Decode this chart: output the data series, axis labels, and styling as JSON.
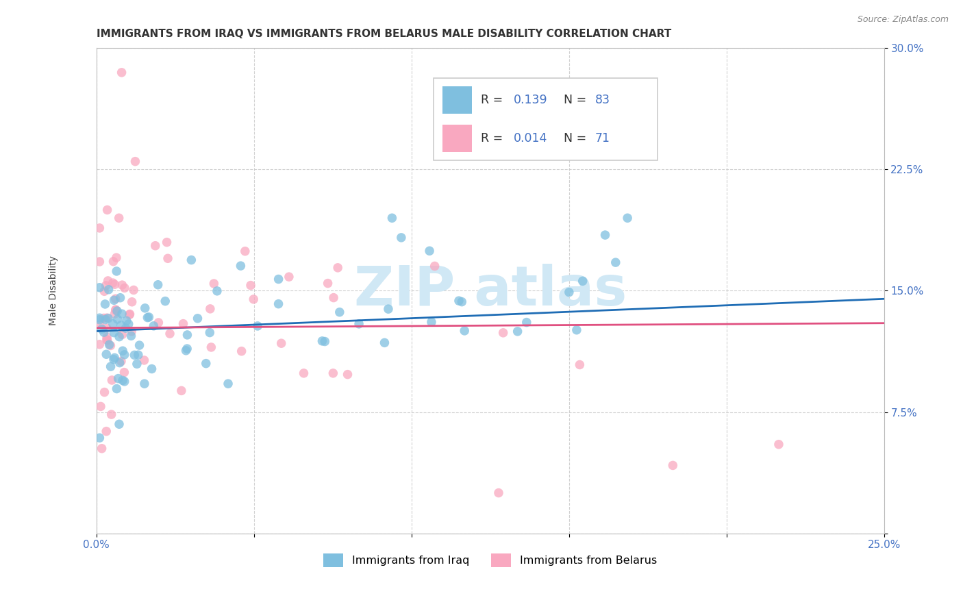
{
  "title": "IMMIGRANTS FROM IRAQ VS IMMIGRANTS FROM BELARUS MALE DISABILITY CORRELATION CHART",
  "source": "Source: ZipAtlas.com",
  "ylabel": "Male Disability",
  "xlim": [
    0.0,
    0.25
  ],
  "ylim": [
    0.0,
    0.3
  ],
  "xtick_positions": [
    0.0,
    0.05,
    0.1,
    0.15,
    0.2,
    0.25
  ],
  "xtick_labels": [
    "0.0%",
    "",
    "",
    "",
    "",
    "25.0%"
  ],
  "ytick_positions": [
    0.0,
    0.075,
    0.15,
    0.225,
    0.3
  ],
  "ytick_labels": [
    "",
    "7.5%",
    "15.0%",
    "22.5%",
    "30.0%"
  ],
  "legend_iraq_R": "0.139",
  "legend_iraq_N": "83",
  "legend_belarus_R": "0.014",
  "legend_belarus_N": "71",
  "iraq_color": "#7fbfdf",
  "belarus_color": "#f9a8c0",
  "iraq_line_color": "#1f6db5",
  "belarus_line_color": "#e05080",
  "watermark_text": "ZIP atlas",
  "watermark_color": "#d0e8f5",
  "background_color": "#ffffff",
  "grid_color": "#cccccc",
  "title_fontsize": 11,
  "axis_label_fontsize": 10,
  "tick_fontsize": 11,
  "source_fontsize": 9,
  "tick_color": "#4472c4"
}
